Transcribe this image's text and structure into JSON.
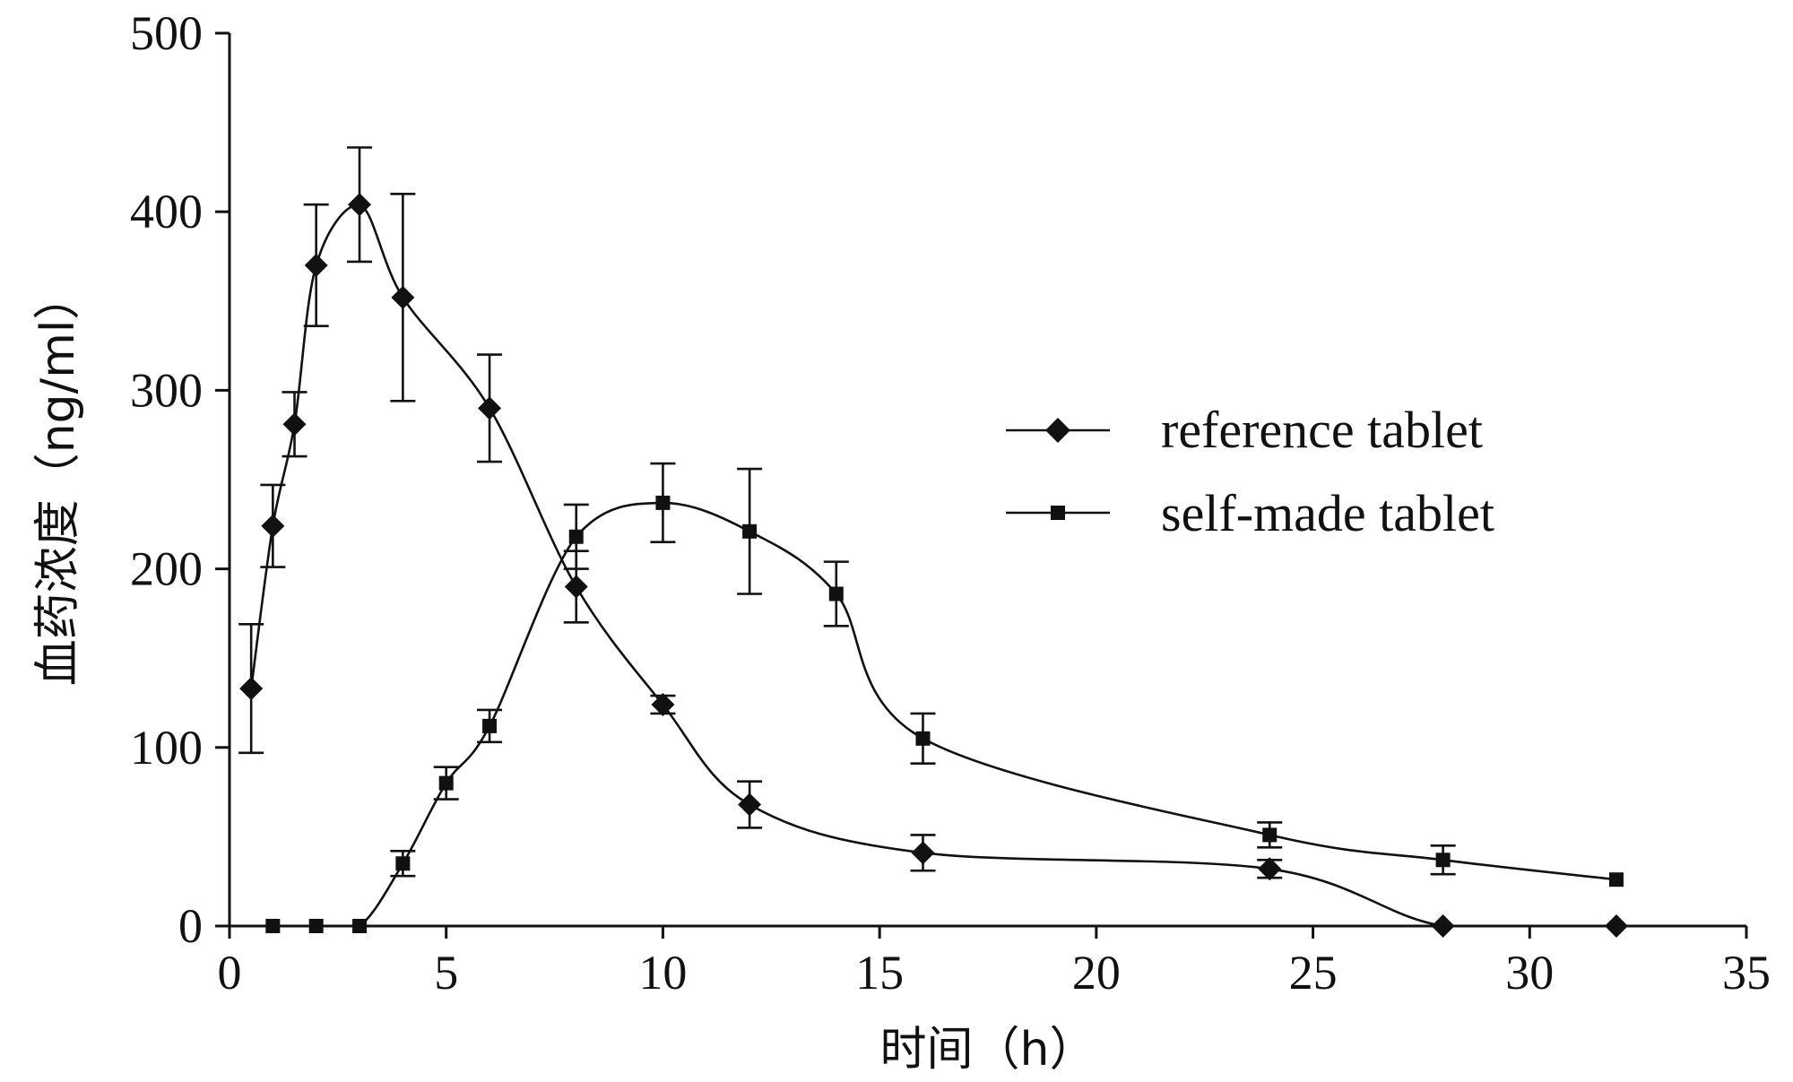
{
  "chart_data": {
    "type": "line",
    "title": "",
    "xlabel": "时间（h）",
    "ylabel": "血药浓度（ng/ml）",
    "xlim": [
      0,
      35
    ],
    "ylim": [
      0,
      500
    ],
    "xticks": [
      0,
      5,
      10,
      15,
      20,
      25,
      30,
      35
    ],
    "yticks": [
      0,
      100,
      200,
      300,
      400,
      500
    ],
    "xtick_labels": [
      "0",
      "5",
      "10",
      "15",
      "20",
      "25",
      "30",
      "35"
    ],
    "ytick_labels": [
      "0",
      "100",
      "200",
      "300",
      "400",
      "500"
    ],
    "grid": false,
    "legend_position": "right",
    "series": [
      {
        "name": "reference tablet",
        "marker": "diamond",
        "x": [
          0.5,
          1,
          1.5,
          2,
          3,
          4,
          6,
          8,
          10,
          12,
          16,
          24,
          28,
          32
        ],
        "y": [
          133,
          224,
          281,
          370,
          404,
          352,
          290,
          190,
          124,
          68,
          41,
          32,
          0,
          0
        ],
        "err": [
          36,
          23,
          18,
          34,
          32,
          58,
          30,
          20,
          5,
          13,
          10,
          5,
          0,
          0
        ]
      },
      {
        "name": "self-made tablet",
        "marker": "square",
        "x": [
          1,
          2,
          3,
          4,
          5,
          6,
          8,
          10,
          12,
          14,
          16,
          24,
          28,
          32
        ],
        "y": [
          0,
          0,
          0,
          35,
          80,
          112,
          218,
          237,
          221,
          186,
          105,
          51,
          37,
          26
        ],
        "err": [
          0,
          0,
          0,
          7,
          9,
          9,
          18,
          22,
          35,
          18,
          14,
          7,
          8,
          0
        ]
      }
    ]
  }
}
